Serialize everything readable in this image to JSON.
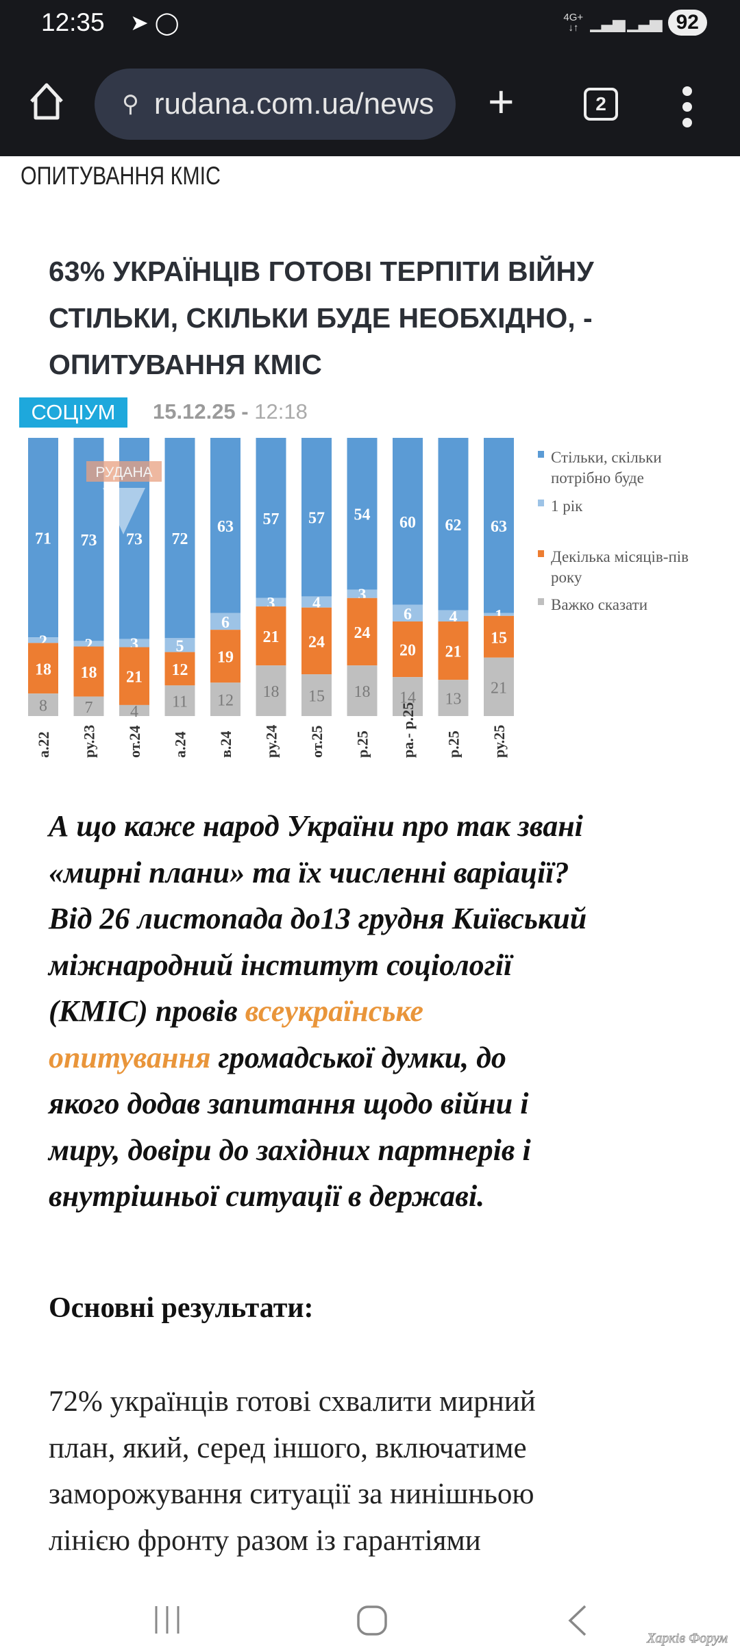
{
  "status": {
    "time": "12:35",
    "network": "4G+",
    "battery": "92"
  },
  "browser": {
    "url": "rudana.com.ua/news",
    "tab_count": "2"
  },
  "page": {
    "breadcrumb_tail": "ОПИТУВАННЯ КМІС",
    "headline_lines": [
      "63% УКРАЇНЦІВ ГОТОВІ ТЕРПІТИ ВІЙНУ",
      "СТІЛЬКИ, СКІЛЬКИ БУДЕ НЕОБХІДНО, -",
      "ОПИТУВАННЯ КМІС"
    ],
    "category": "СОЦІУМ",
    "date": "15.12.25 -",
    "time": "12:18",
    "intro": {
      "l1": "А що каже народ України про так звані",
      "l2": "«мирні плани» та їх численні варіації?",
      "l3": "Від 26 листопада до13 грудня Київський",
      "l4": "міжнародний інститут соціології",
      "l5": "(КМІС) провів ",
      "link1": "всеукраїнське",
      "link2": "опитування",
      "l6": " громадської думки, до",
      "l7": "якого додав запитання щодо війни і",
      "l8": "миру, довіри до західних партнерів і",
      "l9": "внутрішньої ситуації в державі."
    },
    "subhead": "Основні результати:",
    "para_lines": [
      "72% українців готові схвалити мирний",
      "план, який, серед іншого, включатиме",
      "заморожування ситуації за нинішньою",
      "лінією фронту разом із гарантіями"
    ],
    "watermark": "Харків Форум"
  },
  "chart_data": {
    "type": "bar",
    "stacked": true,
    "logo_text": "РУДАНА",
    "categories": [
      "а.22",
      "ру.23",
      "от.24",
      "а.24",
      "в.24",
      "ру.24",
      "от.25",
      "р.25",
      "ра.- р.25",
      "р.25",
      "ру.25"
    ],
    "series": [
      {
        "name": "Стільки, скільки потрібно буде",
        "color": "#5b9bd5",
        "values": [
          71,
          73,
          73,
          72,
          63,
          57,
          57,
          54,
          60,
          62,
          63
        ]
      },
      {
        "name": "1 рік",
        "color": "#9dc3e6",
        "values": [
          2,
          2,
          3,
          5,
          6,
          3,
          4,
          3,
          6,
          4,
          1
        ]
      },
      {
        "name": "Декілька місяців-пів року",
        "color": "#ed7d31",
        "values": [
          18,
          18,
          21,
          12,
          19,
          21,
          24,
          24,
          20,
          21,
          15
        ]
      },
      {
        "name": "Важко сказати",
        "color": "#bfbfbf",
        "values": [
          8,
          7,
          4,
          11,
          12,
          18,
          15,
          18,
          14,
          13,
          21
        ]
      }
    ],
    "legend": "right",
    "ylim": [
      0,
      100
    ]
  }
}
